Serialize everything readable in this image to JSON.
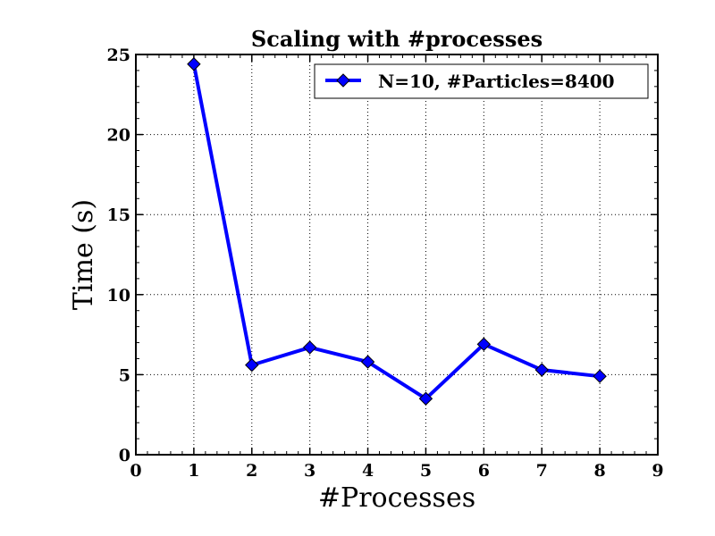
{
  "chart_data": {
    "type": "line",
    "title": "Scaling with #processes",
    "xlabel": "#Processes",
    "ylabel": "Time (s)",
    "xlim": [
      0,
      9
    ],
    "ylim": [
      0,
      25
    ],
    "xticks": [
      0,
      1,
      2,
      3,
      4,
      5,
      6,
      7,
      8,
      9
    ],
    "yticks": [
      0,
      5,
      10,
      15,
      20,
      25
    ],
    "xtick_labels": [
      "0",
      "1",
      "2",
      "3",
      "4",
      "5",
      "6",
      "7",
      "8",
      "9"
    ],
    "ytick_labels": [
      "0",
      "5",
      "10",
      "15",
      "20",
      "25"
    ],
    "grid": true,
    "legend_position": "top-right",
    "series": [
      {
        "name": "N=10, #Particles=8400",
        "color": "#0000ff",
        "marker": "diamond",
        "x": [
          1,
          2,
          3,
          4,
          5,
          6,
          7,
          8
        ],
        "y": [
          24.4,
          5.6,
          6.7,
          5.8,
          3.5,
          6.9,
          5.3,
          4.9
        ]
      }
    ]
  }
}
